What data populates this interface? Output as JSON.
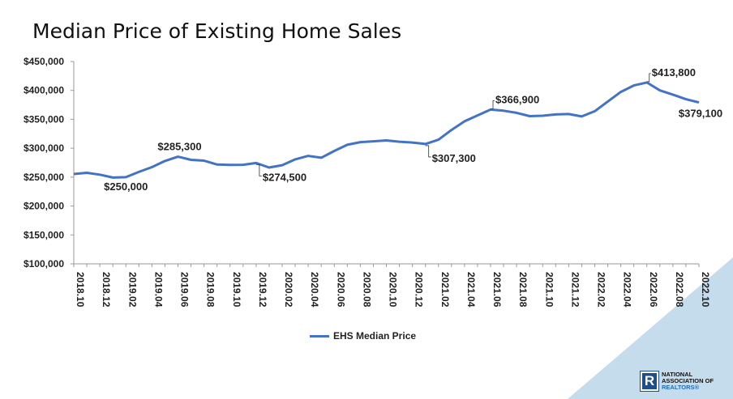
{
  "title": "Median Price of Existing Home Sales",
  "chart_data": {
    "type": "line",
    "title": "Median Price of Existing Home Sales",
    "xlabel": "",
    "ylabel": "",
    "ylim": [
      100000,
      450000
    ],
    "y_ticks": [
      "$100,000",
      "$150,000",
      "$200,000",
      "$250,000",
      "$300,000",
      "$350,000",
      "$400,000",
      "$450,000"
    ],
    "x_tick_labels": [
      "2018.10",
      "2018.12",
      "2019.02",
      "2019.04",
      "2019.06",
      "2019.08",
      "2019.10",
      "2019.12",
      "2020.02",
      "2020.04",
      "2020.06",
      "2020.08",
      "2020.10",
      "2020.12",
      "2021.02",
      "2021.04",
      "2021.06",
      "2021.08",
      "2021.10",
      "2021.12",
      "2022.02",
      "2022.04",
      "2022.06",
      "2022.08",
      "2022.10"
    ],
    "x": [
      "2018.10",
      "2018.11",
      "2018.12",
      "2019.01",
      "2019.02",
      "2019.03",
      "2019.04",
      "2019.05",
      "2019.06",
      "2019.07",
      "2019.08",
      "2019.09",
      "2019.10",
      "2019.11",
      "2019.12",
      "2020.01",
      "2020.02",
      "2020.03",
      "2020.04",
      "2020.05",
      "2020.06",
      "2020.07",
      "2020.08",
      "2020.09",
      "2020.10",
      "2020.11",
      "2020.12",
      "2021.01",
      "2021.02",
      "2021.03",
      "2021.04",
      "2021.05",
      "2021.06",
      "2021.07",
      "2021.08",
      "2021.09",
      "2021.10",
      "2021.11",
      "2021.12",
      "2022.01",
      "2022.02",
      "2022.03",
      "2022.04",
      "2022.05",
      "2022.06",
      "2022.07",
      "2022.08",
      "2022.09",
      "2022.10"
    ],
    "series": [
      {
        "name": "EHS Median Price",
        "color": "#4472C4",
        "values": [
          255400,
          257500,
          254300,
          249200,
          250000,
          259000,
          267300,
          278000,
          285300,
          279900,
          278500,
          271800,
          271200,
          271300,
          274500,
          266600,
          270700,
          280700,
          286800,
          283500,
          295300,
          305900,
          310600,
          312000,
          313500,
          311200,
          309800,
          307300,
          314800,
          331600,
          346500,
          356800,
          366900,
          364900,
          361300,
          355500,
          356200,
          358500,
          359200,
          355000,
          364000,
          380900,
          397400,
          408600,
          413800,
          400000,
          392700,
          384800,
          379100
        ]
      }
    ],
    "annotations": [
      {
        "index": 4,
        "text": "$250,000",
        "pos": "below",
        "leader": false
      },
      {
        "index": 8,
        "text": "$285,300",
        "pos": "above",
        "leader": false
      },
      {
        "index": 14,
        "text": "$274,500",
        "pos": "below-right",
        "leader": true
      },
      {
        "index": 27,
        "text": "$307,300",
        "pos": "below-right",
        "leader": true
      },
      {
        "index": 32,
        "text": "$366,900",
        "pos": "above-right",
        "leader": true
      },
      {
        "index": 44,
        "text": "$413,800",
        "pos": "above-right",
        "leader": true
      },
      {
        "index": 48,
        "text": "$379,100",
        "pos": "below-left",
        "leader": false
      }
    ],
    "legend": {
      "placement": "bottom",
      "label": "EHS Median Price"
    },
    "grid": false
  },
  "logo": {
    "line1": "NATIONAL",
    "line2": "ASSOCIATION OF",
    "line3": "REALTORS",
    "mark": "R",
    "reg": "®"
  },
  "colors": {
    "accent": "#4472C4",
    "decor": "#c5dcec",
    "brand": "#1f4e8c"
  }
}
